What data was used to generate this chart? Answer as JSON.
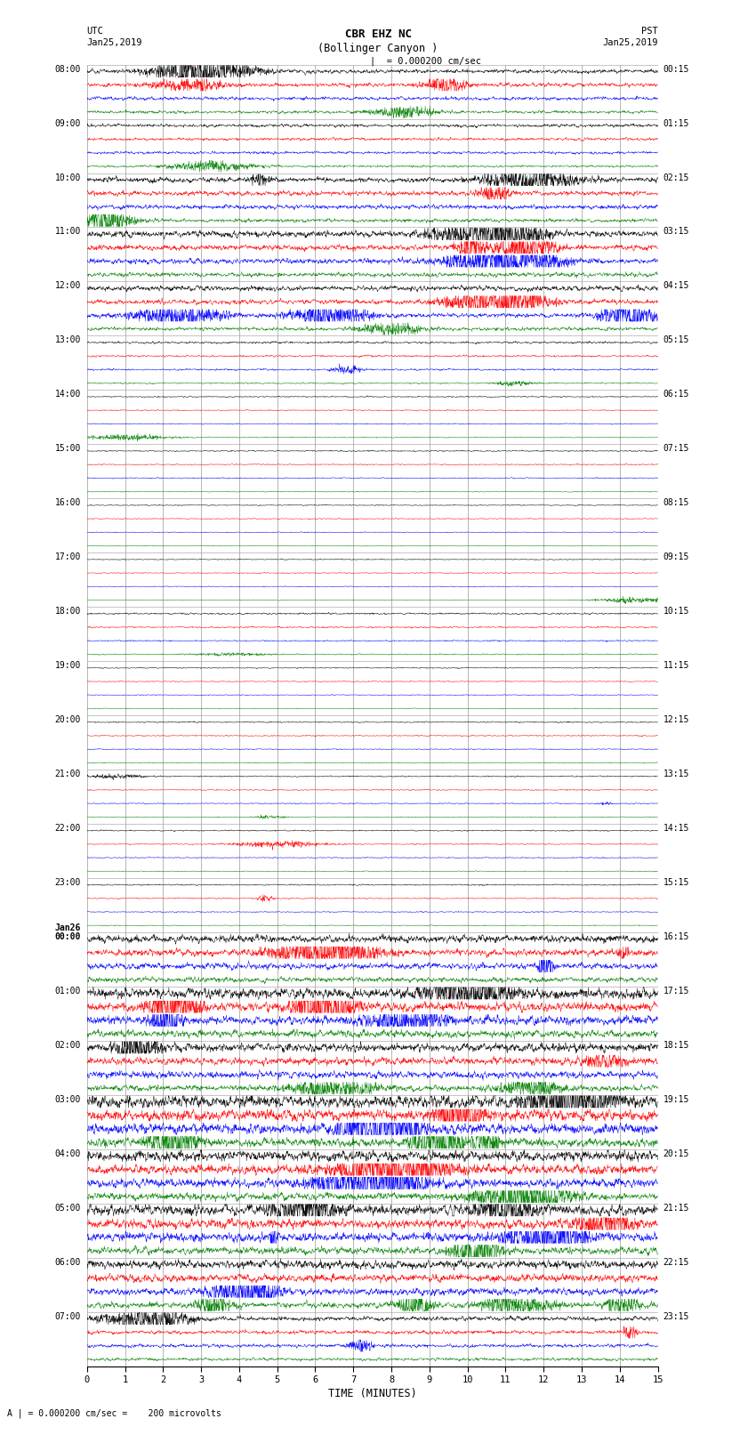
{
  "title_line1": "CBR EHZ NC",
  "title_line2": "(Bollinger Canyon )",
  "title_scale": "| = 0.000200 cm/sec",
  "left_label_top": "UTC",
  "left_label_date": "Jan25,2019",
  "right_label_top": "PST",
  "right_label_date": "Jan25,2019",
  "xlabel": "TIME (MINUTES)",
  "bottom_note": "A | = 0.000200 cm/sec =    200 microvolts",
  "utc_labels": [
    "08:00",
    "09:00",
    "10:00",
    "11:00",
    "12:00",
    "13:00",
    "14:00",
    "15:00",
    "16:00",
    "17:00",
    "18:00",
    "19:00",
    "20:00",
    "21:00",
    "22:00",
    "23:00",
    "Jan26\n00:00",
    "01:00",
    "02:00",
    "03:00",
    "04:00",
    "05:00",
    "06:00",
    "07:00"
  ],
  "pst_labels": [
    "00:15",
    "01:15",
    "02:15",
    "03:15",
    "04:15",
    "05:15",
    "06:15",
    "07:15",
    "08:15",
    "09:15",
    "10:15",
    "11:15",
    "12:15",
    "13:15",
    "14:15",
    "15:15",
    "16:15",
    "17:15",
    "18:15",
    "19:15",
    "20:15",
    "21:15",
    "22:15",
    "23:15"
  ],
  "colors": [
    "black",
    "red",
    "blue",
    "green"
  ],
  "n_hours": 24,
  "n_traces_per_hour": 4,
  "time_minutes": 15,
  "background_color": "white",
  "grid_color": "#999999",
  "fig_width": 8.5,
  "fig_height": 16.13,
  "trace_amplitude_by_hour": [
    2.0,
    1.5,
    2.5,
    3.0,
    2.5,
    1.0,
    0.6,
    0.6,
    0.5,
    0.5,
    0.8,
    0.5,
    0.6,
    0.6,
    0.6,
    0.6,
    3.5,
    5.0,
    4.0,
    6.0,
    5.0,
    5.0,
    4.0,
    2.0
  ]
}
